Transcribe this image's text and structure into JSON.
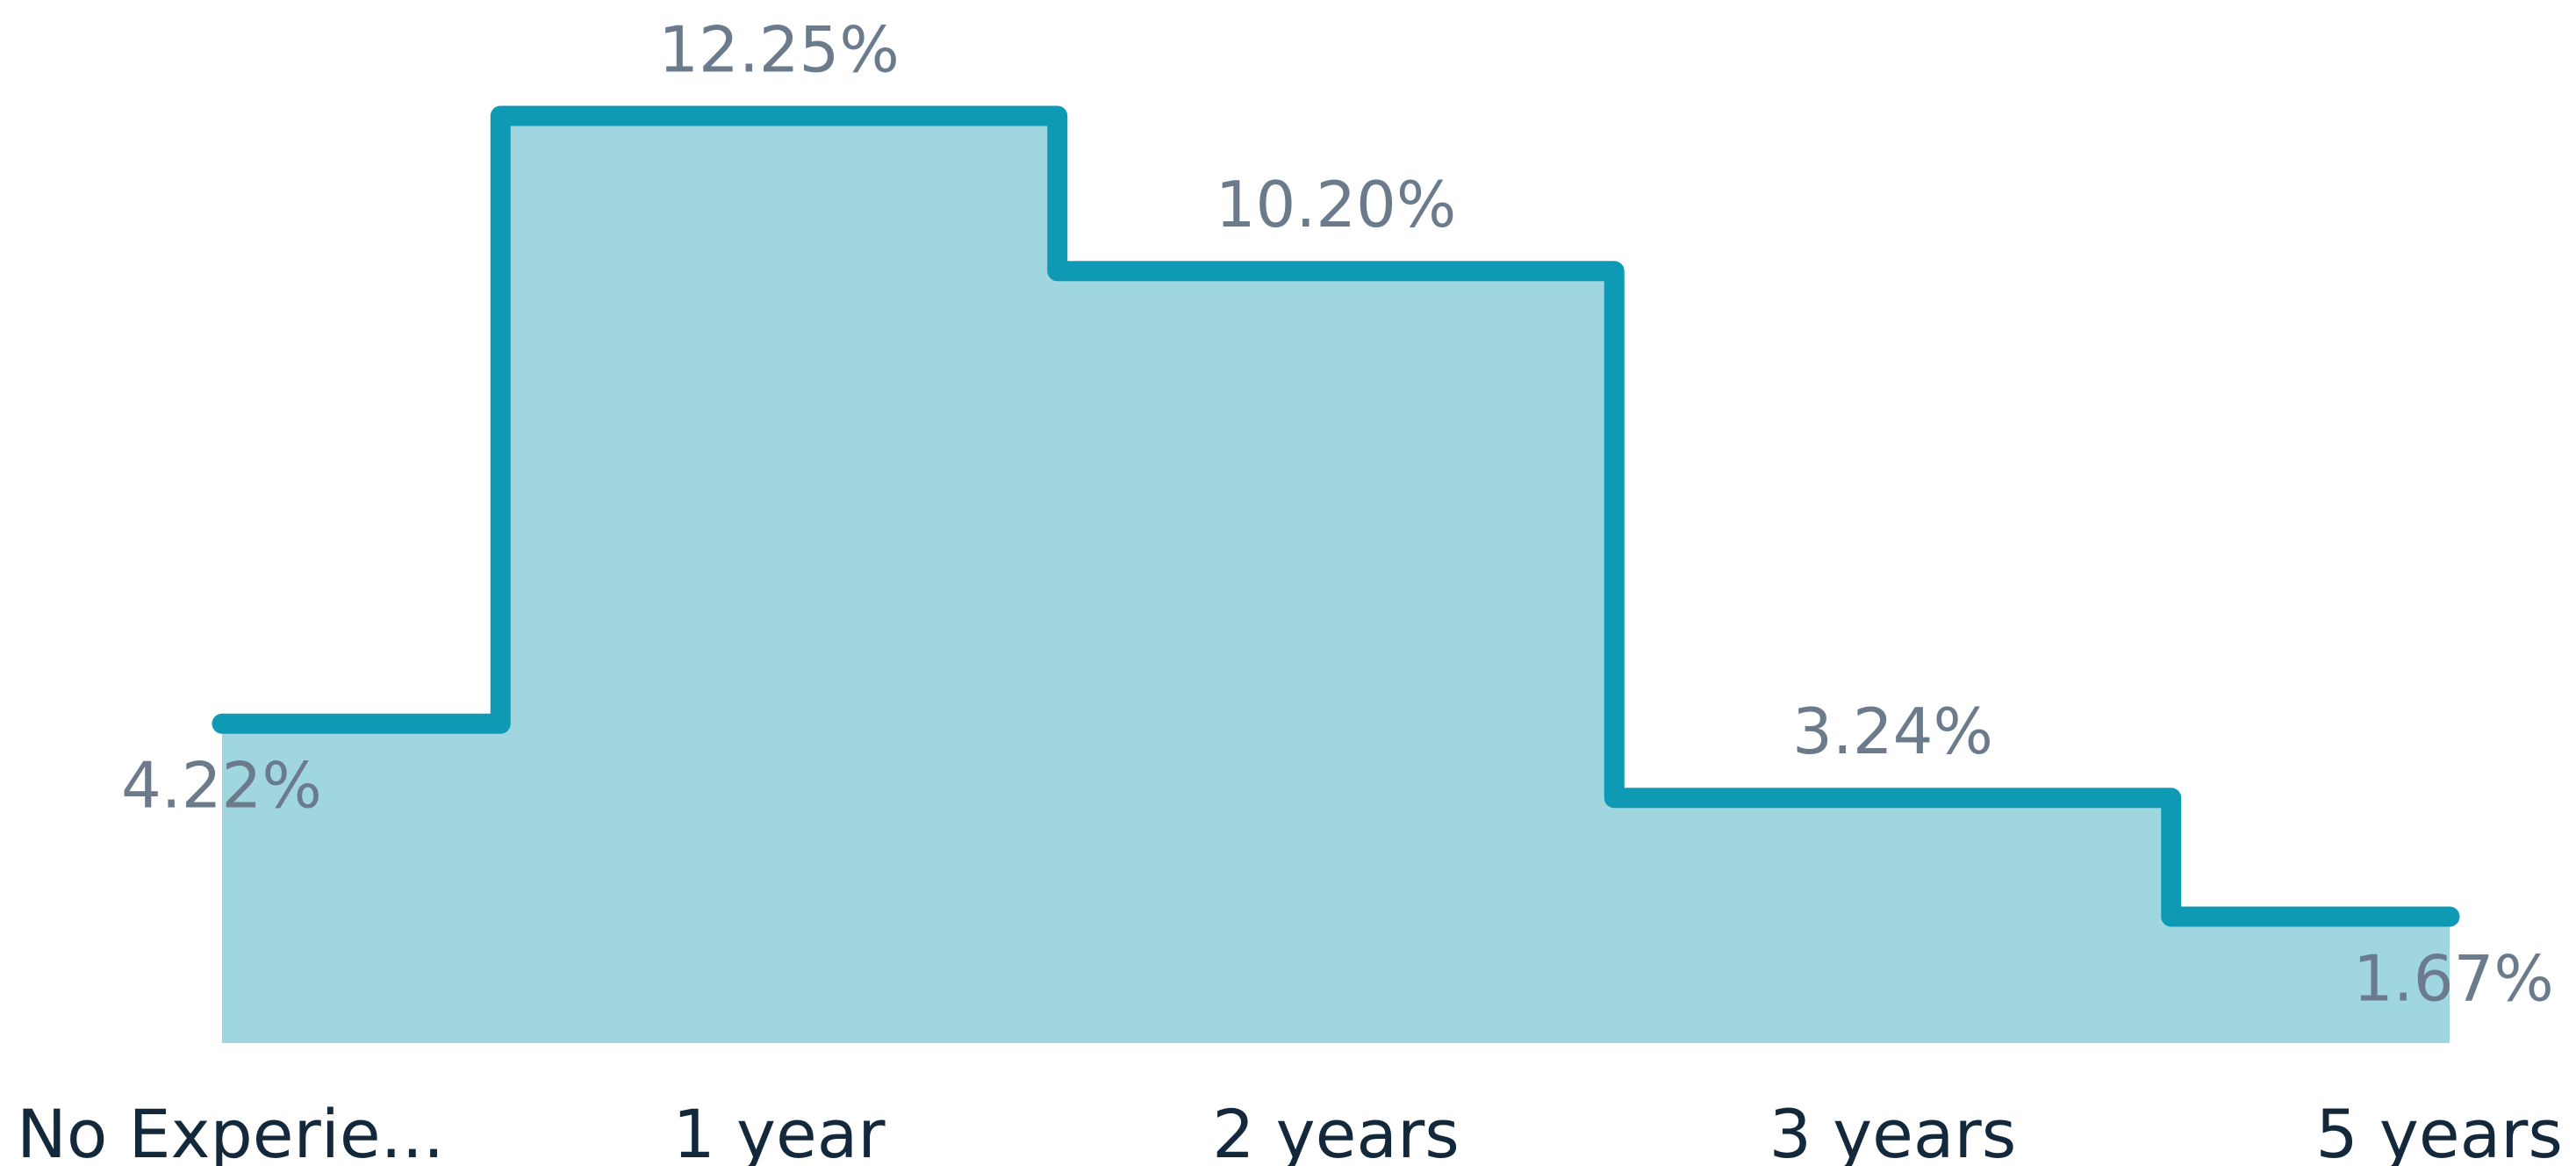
{
  "chart_data": {
    "type": "step-area",
    "categories": [
      "No Experie...",
      "1 year",
      "2 years",
      "3 years",
      "5 years"
    ],
    "values": [
      4.22,
      12.25,
      10.2,
      3.24,
      1.67
    ],
    "value_labels": [
      "4.22%",
      "12.25%",
      "10.20%",
      "3.24%",
      "1.67%"
    ],
    "color": "#0e9ab5",
    "fill": "#9fd6e0",
    "ylim": [
      0,
      12.25
    ]
  }
}
